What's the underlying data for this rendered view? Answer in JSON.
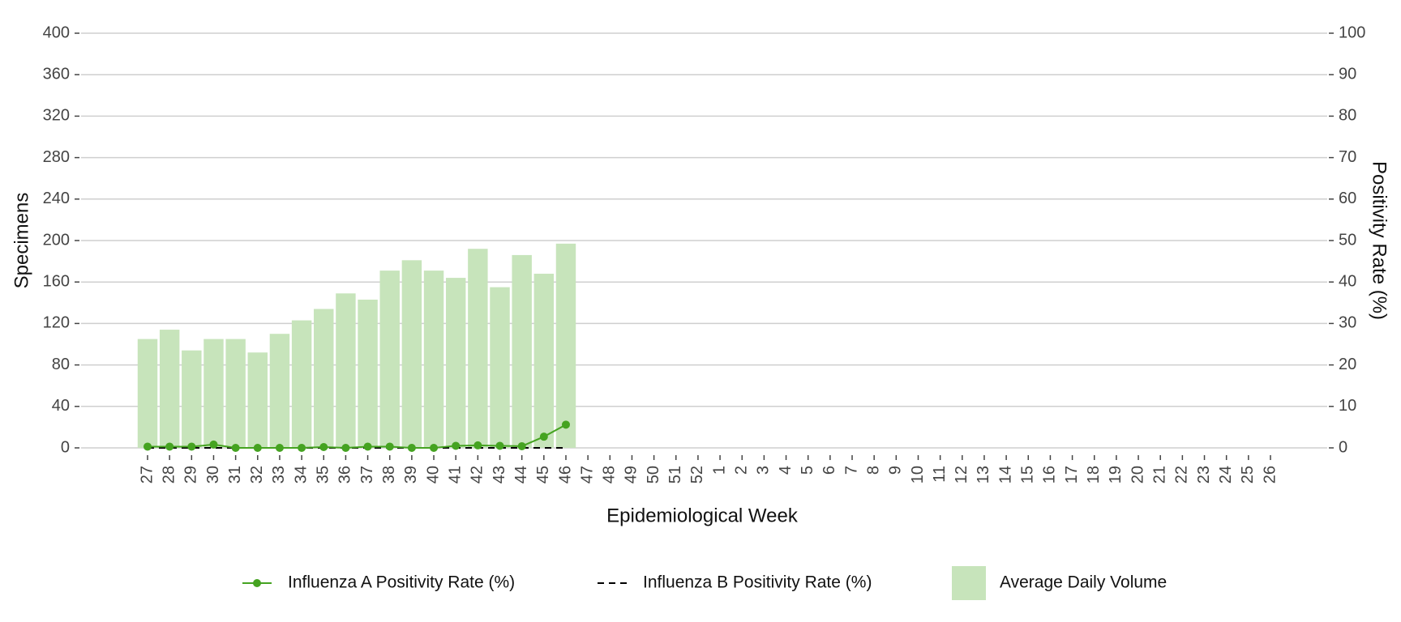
{
  "chart_data": {
    "type": "bar",
    "xlabel": "Epidemiological Week",
    "ylabel": "Specimens",
    "y2label": "Positivity Rate (%)",
    "categories": [
      "27",
      "28",
      "29",
      "30",
      "31",
      "32",
      "33",
      "34",
      "35",
      "36",
      "37",
      "38",
      "39",
      "40",
      "41",
      "42",
      "43",
      "44",
      "45",
      "46",
      "47",
      "48",
      "49",
      "50",
      "51",
      "52",
      "1",
      "2",
      "3",
      "4",
      "5",
      "6",
      "7",
      "8",
      "9",
      "10",
      "11",
      "12",
      "13",
      "14",
      "15",
      "16",
      "17",
      "18",
      "19",
      "20",
      "21",
      "22",
      "23",
      "24",
      "25",
      "26"
    ],
    "series": [
      {
        "name": "Average Daily Volume",
        "type": "bar",
        "color": "#c7e4bb",
        "values": [
          105,
          114,
          94,
          105,
          105,
          92,
          110,
          123,
          134,
          149,
          143,
          171,
          181,
          171,
          164,
          192,
          155,
          186,
          168,
          197,
          null,
          null,
          null,
          null,
          null,
          null,
          null,
          null,
          null,
          null,
          null,
          null,
          null,
          null,
          null,
          null,
          null,
          null,
          null,
          null,
          null,
          null,
          null,
          null,
          null,
          null,
          null,
          null,
          null,
          null,
          null,
          null
        ]
      },
      {
        "name": "Influenza A Positivity Rate (%)",
        "type": "line",
        "axis": "y2",
        "color": "#45a321",
        "marker": true,
        "values": [
          0.3,
          0.3,
          0.3,
          0.8,
          0,
          0,
          0,
          0,
          0.2,
          0,
          0.3,
          0.3,
          0,
          0,
          0.5,
          0.6,
          0.5,
          0.4,
          2.7,
          5.6,
          null,
          null,
          null,
          null,
          null,
          null,
          null,
          null,
          null,
          null,
          null,
          null,
          null,
          null,
          null,
          null,
          null,
          null,
          null,
          null,
          null,
          null,
          null,
          null,
          null,
          null,
          null,
          null,
          null,
          null,
          null,
          null
        ]
      },
      {
        "name": "Influenza B Positivity Rate (%)",
        "type": "line",
        "axis": "y2",
        "color": "#000000",
        "dash": true,
        "values": [
          0,
          0,
          0,
          0,
          0,
          0,
          0,
          0,
          0,
          0,
          0,
          0,
          0,
          0,
          0,
          0,
          0,
          0,
          0,
          0,
          null,
          null,
          null,
          null,
          null,
          null,
          null,
          null,
          null,
          null,
          null,
          null,
          null,
          null,
          null,
          null,
          null,
          null,
          null,
          null,
          null,
          null,
          null,
          null,
          null,
          null,
          null,
          null,
          null,
          null,
          null,
          null
        ]
      }
    ],
    "ylim": [
      0,
      400
    ],
    "yticks": [
      0,
      40,
      80,
      120,
      160,
      200,
      240,
      280,
      320,
      360,
      400
    ],
    "y2lim": [
      0,
      100
    ],
    "y2ticks": [
      0,
      10,
      20,
      30,
      40,
      50,
      60,
      70,
      80,
      90,
      100
    ],
    "grid": true,
    "legend": "bottom"
  }
}
